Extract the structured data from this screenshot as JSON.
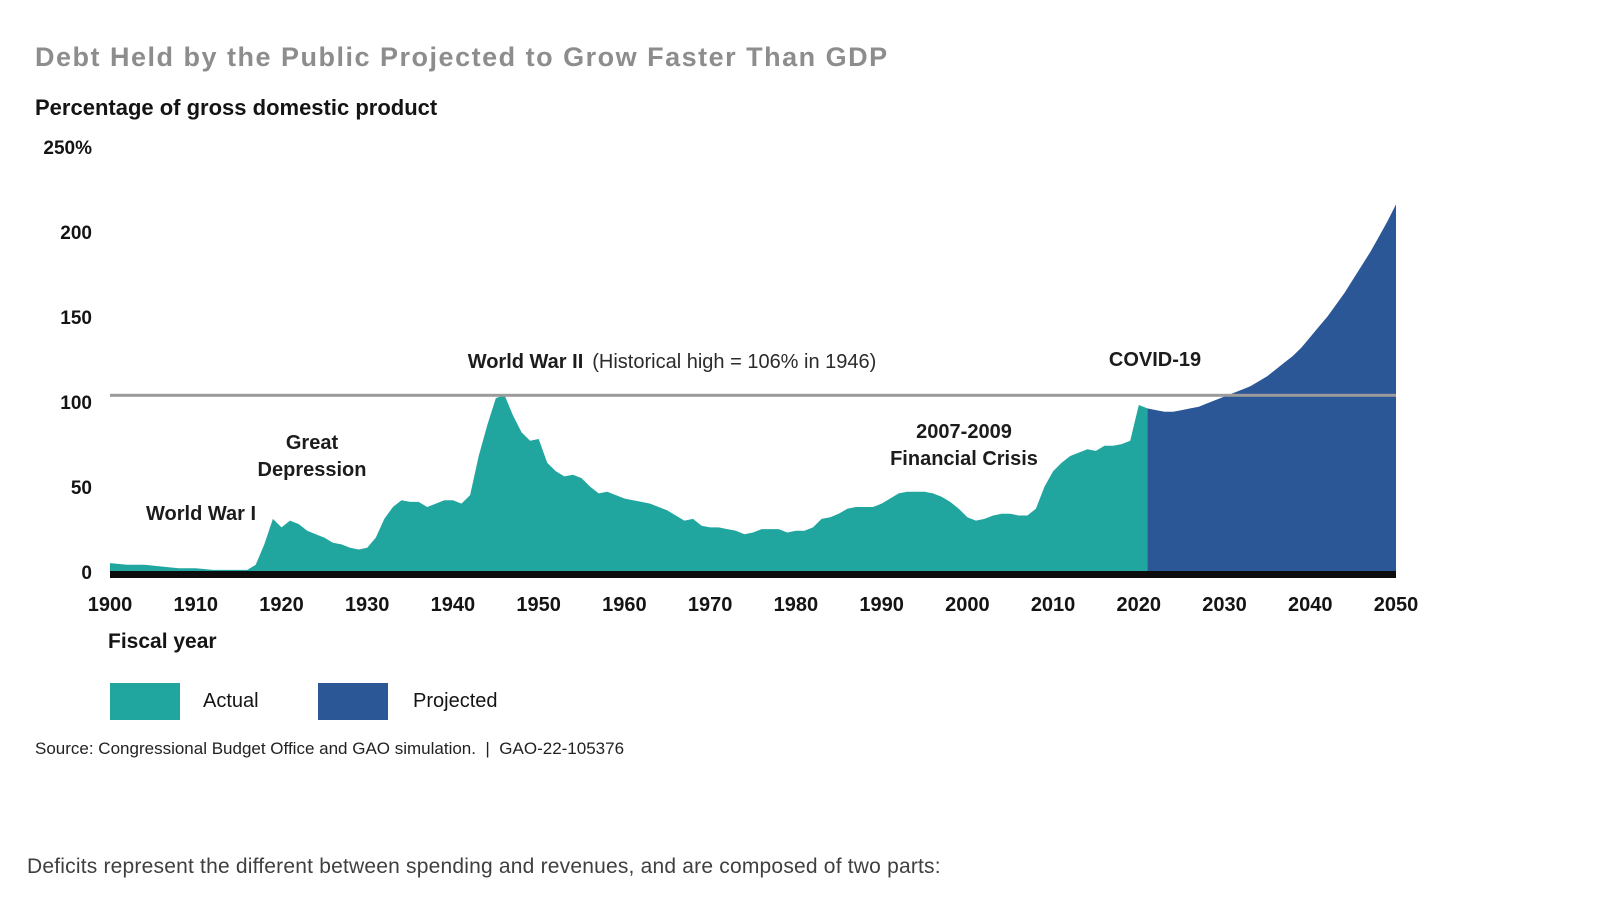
{
  "title": "Debt Held by the Public Projected to Grow Faster Than GDP",
  "subtitle": "Percentage of gross domestic product",
  "axis": {
    "x_label": "Fiscal year",
    "y_ticks": [
      {
        "label": "250%",
        "value": 250
      },
      {
        "label": "200",
        "value": 200
      },
      {
        "label": "150",
        "value": 150
      },
      {
        "label": "100",
        "value": 100
      },
      {
        "label": "50",
        "value": 50
      },
      {
        "label": "0",
        "value": 0
      }
    ],
    "x_ticks": [
      1900,
      1910,
      1920,
      1930,
      1940,
      1950,
      1960,
      1970,
      1980,
      1990,
      2000,
      2010,
      2020,
      2030,
      2040,
      2050
    ]
  },
  "annotations": {
    "world_war_1": "World War I",
    "great_depression": [
      "Great",
      "Depression"
    ],
    "wwii_bold": "World War II",
    "wwii_rest": "(Historical high = 106% in 1946)",
    "financial_crisis": [
      "2007-2009",
      "Financial Crisis"
    ],
    "covid": "COVID-19"
  },
  "legend": [
    {
      "label": "Actual",
      "color": "#21A69F"
    },
    {
      "label": "Projected",
      "color": "#2B5797"
    }
  ],
  "source": "Source: Congressional Budget Office and GAO simulation.  |  GAO-22-105376",
  "footer_text": "Deficits represent the different between spending and revenues, and are composed of two parts:",
  "colors": {
    "actual_area": "#21A69F",
    "projected_area": "#2B5797",
    "historical_high_line": "#9B9B9B",
    "x_axis_line": "#0D0D0D",
    "title_gray": "#8D8D8D"
  },
  "chart_data": {
    "type": "area",
    "title": "Debt Held by the Public Projected to Grow Faster Than GDP",
    "xlabel": "Fiscal year",
    "ylabel": "Percentage of gross domestic product",
    "xlim": [
      1900,
      2050
    ],
    "ylim": [
      0,
      250
    ],
    "grid": false,
    "legend_position": "bottom-left",
    "reference_line": {
      "value": 106,
      "label": "Historical high = 106% in 1946"
    },
    "series": [
      {
        "name": "Actual",
        "color": "#21A69F",
        "points": [
          [
            1900,
            7
          ],
          [
            1902,
            6
          ],
          [
            1904,
            6
          ],
          [
            1906,
            5
          ],
          [
            1908,
            4
          ],
          [
            1910,
            4
          ],
          [
            1912,
            3
          ],
          [
            1914,
            3
          ],
          [
            1916,
            3
          ],
          [
            1917,
            6
          ],
          [
            1918,
            18
          ],
          [
            1919,
            33
          ],
          [
            1920,
            28
          ],
          [
            1921,
            32
          ],
          [
            1922,
            30
          ],
          [
            1923,
            26
          ],
          [
            1924,
            24
          ],
          [
            1925,
            22
          ],
          [
            1926,
            19
          ],
          [
            1927,
            18
          ],
          [
            1928,
            16
          ],
          [
            1929,
            15
          ],
          [
            1930,
            16
          ],
          [
            1931,
            22
          ],
          [
            1932,
            33
          ],
          [
            1933,
            40
          ],
          [
            1934,
            44
          ],
          [
            1935,
            43
          ],
          [
            1936,
            43
          ],
          [
            1937,
            40
          ],
          [
            1938,
            42
          ],
          [
            1939,
            44
          ],
          [
            1940,
            44
          ],
          [
            1941,
            42
          ],
          [
            1942,
            47
          ],
          [
            1943,
            70
          ],
          [
            1944,
            88
          ],
          [
            1945,
            104
          ],
          [
            1946,
            106
          ],
          [
            1947,
            94
          ],
          [
            1948,
            84
          ],
          [
            1949,
            79
          ],
          [
            1950,
            80
          ],
          [
            1951,
            66
          ],
          [
            1952,
            61
          ],
          [
            1953,
            58
          ],
          [
            1954,
            59
          ],
          [
            1955,
            57
          ],
          [
            1956,
            52
          ],
          [
            1957,
            48
          ],
          [
            1958,
            49
          ],
          [
            1959,
            47
          ],
          [
            1960,
            45
          ],
          [
            1961,
            44
          ],
          [
            1962,
            43
          ],
          [
            1963,
            42
          ],
          [
            1964,
            40
          ],
          [
            1965,
            38
          ],
          [
            1966,
            35
          ],
          [
            1967,
            32
          ],
          [
            1968,
            33
          ],
          [
            1969,
            29
          ],
          [
            1970,
            28
          ],
          [
            1971,
            28
          ],
          [
            1972,
            27
          ],
          [
            1973,
            26
          ],
          [
            1974,
            24
          ],
          [
            1975,
            25
          ],
          [
            1976,
            27
          ],
          [
            1977,
            27
          ],
          [
            1978,
            27
          ],
          [
            1979,
            25
          ],
          [
            1980,
            26
          ],
          [
            1981,
            26
          ],
          [
            1982,
            28
          ],
          [
            1983,
            33
          ],
          [
            1984,
            34
          ],
          [
            1985,
            36
          ],
          [
            1986,
            39
          ],
          [
            1987,
            40
          ],
          [
            1988,
            40
          ],
          [
            1989,
            40
          ],
          [
            1990,
            42
          ],
          [
            1991,
            45
          ],
          [
            1992,
            48
          ],
          [
            1993,
            49
          ],
          [
            1994,
            49
          ],
          [
            1995,
            49
          ],
          [
            1996,
            48
          ],
          [
            1997,
            46
          ],
          [
            1998,
            43
          ],
          [
            1999,
            39
          ],
          [
            2000,
            34
          ],
          [
            2001,
            32
          ],
          [
            2002,
            33
          ],
          [
            2003,
            35
          ],
          [
            2004,
            36
          ],
          [
            2005,
            36
          ],
          [
            2006,
            35
          ],
          [
            2007,
            35
          ],
          [
            2008,
            39
          ],
          [
            2009,
            52
          ],
          [
            2010,
            61
          ],
          [
            2011,
            66
          ],
          [
            2012,
            70
          ],
          [
            2013,
            72
          ],
          [
            2014,
            74
          ],
          [
            2015,
            73
          ],
          [
            2016,
            76
          ],
          [
            2017,
            76
          ],
          [
            2018,
            77
          ],
          [
            2019,
            79
          ],
          [
            2020,
            100
          ],
          [
            2021,
            98
          ]
        ]
      },
      {
        "name": "Projected",
        "color": "#2B5797",
        "points": [
          [
            2021,
            98
          ],
          [
            2022,
            97
          ],
          [
            2023,
            96
          ],
          [
            2024,
            96
          ],
          [
            2025,
            97
          ],
          [
            2026,
            98
          ],
          [
            2027,
            99
          ],
          [
            2028,
            101
          ],
          [
            2029,
            103
          ],
          [
            2030,
            105
          ],
          [
            2031,
            107
          ],
          [
            2032,
            109
          ],
          [
            2033,
            111
          ],
          [
            2034,
            114
          ],
          [
            2035,
            117
          ],
          [
            2036,
            121
          ],
          [
            2037,
            125
          ],
          [
            2038,
            129
          ],
          [
            2039,
            134
          ],
          [
            2040,
            140
          ],
          [
            2041,
            146
          ],
          [
            2042,
            152
          ],
          [
            2043,
            159
          ],
          [
            2044,
            166
          ],
          [
            2045,
            174
          ],
          [
            2046,
            182
          ],
          [
            2047,
            190
          ],
          [
            2048,
            199
          ],
          [
            2049,
            208
          ],
          [
            2050,
            218
          ]
        ]
      }
    ]
  }
}
